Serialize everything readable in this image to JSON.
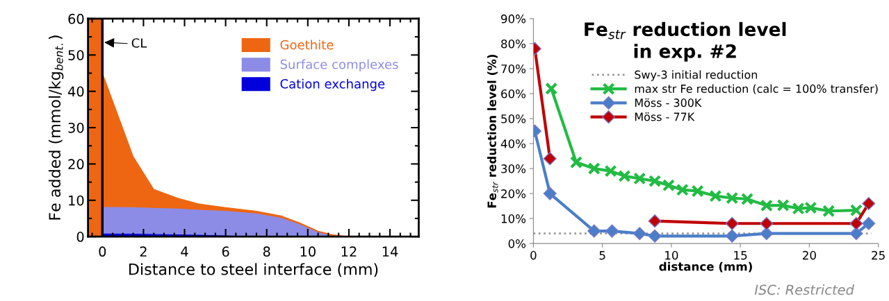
{
  "chart_data": [
    {
      "type": "area",
      "stacked": true,
      "xlabel": "Distance to steel interface (mm)",
      "ylabel": "Fe added (mmol/kg$_{bent.}$)",
      "x": [
        -0.7,
        0,
        0,
        1.5,
        2.5,
        3.7,
        4.7,
        6,
        7.5,
        8.7,
        9.6,
        10.5,
        11.2,
        12
      ],
      "series": [
        {
          "name": "Cation exchange",
          "color": "#0000dd",
          "values": [
            0,
            0,
            1,
            0.9,
            0.8,
            0.7,
            0.6,
            0.4,
            0.2,
            0.1,
            0,
            0,
            0,
            0
          ]
        },
        {
          "name": "Surface complexes",
          "color": "#8c8ce6",
          "values": [
            0,
            0,
            7.3,
            7.3,
            7.2,
            7.1,
            6.9,
            6.8,
            6.3,
            5.2,
            3.5,
            1.3,
            0.3,
            0
          ]
        },
        {
          "name": "Goethite",
          "color": "#ee6611",
          "values": [
            60,
            60,
            36.7,
            13.8,
            5,
            2.7,
            1.5,
            0.8,
            0.5,
            0.4,
            0.3,
            0.2,
            0.2,
            0
          ]
        }
      ],
      "xlim": [
        -0.7,
        15.4
      ],
      "ylim": [
        0,
        60
      ],
      "xticks": [
        0,
        2,
        4,
        6,
        8,
        10,
        12,
        14
      ],
      "yticks": [
        0,
        10,
        20,
        30,
        40,
        50,
        60
      ],
      "ref_lines": [
        {
          "axis": "x",
          "value": 0,
          "color": "#000000",
          "line_style": "solid"
        }
      ],
      "annotations": [
        {
          "text": "CL",
          "x": 0,
          "y": 53.5
        }
      ],
      "legend": "top right",
      "grid": false
    },
    {
      "type": "line",
      "title": "Fe$_{str}$ reduction level\nin exp. #2",
      "xlabel": "distance (mm)",
      "ylabel": "Fe$_{str}$ reduction level (%)",
      "series": [
        {
          "name": "Swy-3 initial reduction",
          "color": "#999999",
          "line_style": "dotted",
          "marker": "none",
          "x": [
            0,
            24.5
          ],
          "values": [
            4,
            4
          ]
        },
        {
          "name": "max str Fe reduction (calc = 100% transfer)",
          "color": "#22bb44",
          "marker": "cross",
          "x": [
            1.3,
            3.1,
            4.4,
            5.6,
            6.6,
            7.7,
            8.8,
            9.8,
            10.8,
            11.9,
            13.2,
            14.4,
            15.5,
            16.9,
            18.1,
            19.2,
            20.1,
            21.4,
            23.4
          ],
          "values": [
            62,
            32.5,
            30,
            29,
            27,
            26,
            25,
            23.3,
            21.5,
            21,
            19,
            18.2,
            17.8,
            15.2,
            15.3,
            14,
            14.3,
            13,
            13.3
          ]
        },
        {
          "name": "Möss - 300K",
          "color": "#4a7ec8",
          "marker": "diamond",
          "x": [
            0.1,
            1.2,
            4.4,
            5.7,
            7.7,
            8.8,
            14.4,
            16.9,
            23.4,
            24.3
          ],
          "values": [
            45,
            20,
            5,
            5,
            4,
            3,
            3,
            4,
            4,
            8
          ]
        },
        {
          "name": "Möss - 77K",
          "color": "#c00000",
          "marker": "diamond",
          "x": [
            0.1,
            1.2,
            5,
            8.8,
            14.4,
            16.9,
            23.4,
            24.3
          ],
          "values": [
            78,
            34,
            null,
            9,
            8,
            8,
            8,
            16
          ]
        }
      ],
      "xlim": [
        0,
        25
      ],
      "ylim": [
        0,
        90
      ],
      "xticks": [
        0,
        5,
        10,
        15,
        20,
        25
      ],
      "yticks": [
        {
          "value": 0,
          "label": "0%"
        },
        {
          "value": 10,
          "label": "10%"
        },
        {
          "value": 20,
          "label": "20%"
        },
        {
          "value": 30,
          "label": "30%"
        },
        {
          "value": 40,
          "label": "40%"
        },
        {
          "value": 50,
          "label": "50%"
        },
        {
          "value": 60,
          "label": "60%"
        },
        {
          "value": 70,
          "label": "70%"
        },
        {
          "value": 80,
          "label": "80%"
        },
        {
          "value": 90,
          "label": "90%"
        }
      ],
      "annotations": [
        "ISC: Restricted"
      ],
      "legend": "top right",
      "grid": false
    }
  ]
}
